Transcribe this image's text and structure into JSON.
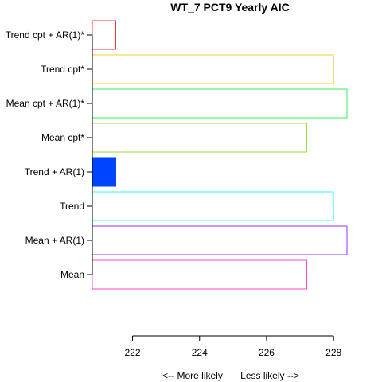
{
  "chart_data": {
    "type": "bar",
    "orientation": "horizontal",
    "title": "WT_7 PCT9 Yearly AIC",
    "xlabel_left": "<--  More likely",
    "xlabel_right": "Less likely  -->",
    "xlim": [
      220.8,
      228.4
    ],
    "x_ticks": [
      222,
      224,
      226,
      228
    ],
    "x_tick_labels": [
      "222",
      "224",
      "226",
      "228"
    ],
    "categories": [
      "Mean",
      "Mean + AR(1)",
      "Trend",
      "Trend + AR(1)",
      "Mean cpt*",
      "Mean cpt + AR(1)*",
      "Trend cpt*",
      "Trend cpt + AR(1)*"
    ],
    "values": [
      227.2,
      228.4,
      228.0,
      221.5,
      227.2,
      228.4,
      228.0,
      221.5
    ],
    "colors": [
      "#ff44cc",
      "#9933ff",
      "#33ffff",
      "#0044ff",
      "#99dd33",
      "#33ee55",
      "#ffcc22",
      "#ee3333"
    ],
    "filled": [
      false,
      false,
      false,
      true,
      false,
      false,
      false,
      false
    ],
    "grid": false,
    "legend": "none"
  }
}
